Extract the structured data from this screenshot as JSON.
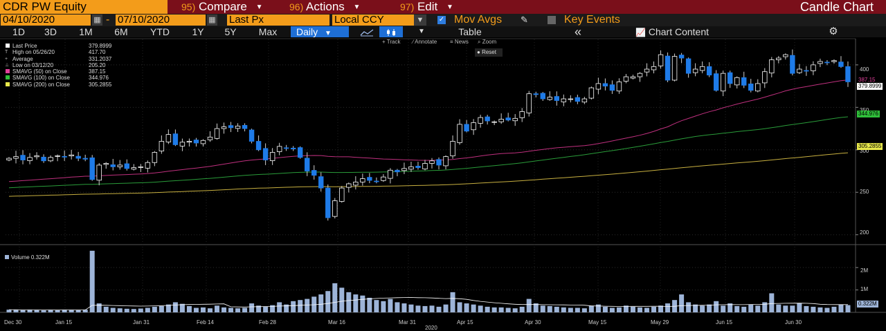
{
  "header": {
    "ticker": "CDR PW Equity",
    "menus": [
      {
        "num": "95)",
        "label": "Compare"
      },
      {
        "num": "96)",
        "label": "Actions"
      },
      {
        "num": "97)",
        "label": "Edit"
      }
    ],
    "title": "Candle Chart"
  },
  "controls": {
    "start_date": "04/10/2020",
    "date_sep": "-",
    "end_date": "07/10/2020",
    "field": "Last Px",
    "currency": "Local CCY",
    "mov_avgs_label": "Mov Avgs",
    "mov_avgs_checked": true,
    "key_events_label": "Key Events",
    "key_events_checked": false
  },
  "toolbar": {
    "periods": [
      "1D",
      "3D",
      "1M",
      "6M",
      "YTD",
      "1Y",
      "5Y",
      "Max"
    ],
    "frequency": "Daily",
    "table_label": "Table",
    "collapse_label": "«",
    "chart_content_label": "Chart Content"
  },
  "tools": {
    "track": "Track",
    "annotate": "Annotate",
    "news": "News",
    "zoom": "Zoom",
    "reset": "Reset"
  },
  "legend": [
    {
      "glyph": "■",
      "color": "#ffffff",
      "label": "Last Price",
      "value": "379.8999"
    },
    {
      "glyph": "T",
      "color": "",
      "label": "High on 05/26/20",
      "value": "417.70"
    },
    {
      "glyph": "+",
      "color": "",
      "label": "Average",
      "value": "331.2037"
    },
    {
      "glyph": "⊥",
      "color": "",
      "label": "Low on 03/12/20",
      "value": "205.20"
    },
    {
      "glyph": "",
      "color": "#e0409a",
      "label": "SMAVG (50)  on Close",
      "value": "387.15"
    },
    {
      "glyph": "",
      "color": "#2fbf3a",
      "label": "SMAVG (100)  on Close",
      "value": "344.976"
    },
    {
      "glyph": "",
      "color": "#e8e84a",
      "label": "SMAVG (200)  on Close",
      "value": "305.2855"
    }
  ],
  "volume_legend": {
    "label": "Volume",
    "value": "0.322M"
  },
  "price_tags": [
    {
      "value": "387.15",
      "color": "#e0409a",
      "text_color": "#e0409a"
    },
    {
      "value": "379.8999",
      "color": "#ffffff",
      "text_color": "#000000"
    },
    {
      "value": "344.976",
      "color": "#2fbf3a",
      "text_color": "#000000"
    },
    {
      "value": "305.2855",
      "color": "#e8e84a",
      "text_color": "#000000"
    },
    {
      "value": "0.322M",
      "color": "#9db4d8",
      "text_color": "#000000"
    }
  ],
  "chart_data": {
    "type": "candlestick",
    "price_axis": {
      "range": [
        190,
        430
      ],
      "ticks": [
        200,
        250,
        300,
        350,
        400
      ]
    },
    "volume_axis": {
      "range": [
        0,
        2900000
      ],
      "tick_values": [
        1000000,
        2000000
      ],
      "tick_labels": [
        "1M",
        "2M"
      ]
    },
    "x_labels": [
      "Dec 30",
      "Jan 15",
      "Jan 31",
      "Feb 14",
      "Feb 28",
      "Mar 16",
      "Mar 31",
      "Apr 15",
      "Apr 30",
      "May 15",
      "May 29",
      "Jun 15",
      "Jun 30"
    ],
    "year_label": "2020",
    "colors": {
      "up": "#ffffff",
      "down": "#1e7be8",
      "sma50": "#c0307f",
      "sma100": "#2a9d3a",
      "sma200": "#c8b040",
      "volume": "#9db4d8",
      "volume_avg": "#ffffff"
    },
    "closes": [
      290,
      292,
      288,
      291,
      293,
      287,
      291,
      293,
      292,
      294,
      290,
      289,
      265,
      282,
      284,
      280,
      282,
      278,
      279,
      280,
      285,
      297,
      310,
      318,
      306,
      309,
      310,
      308,
      311,
      315,
      325,
      327,
      326,
      328,
      325,
      310,
      300,
      288,
      297,
      304,
      302,
      301,
      291,
      275,
      270,
      255,
      220,
      240,
      255,
      260,
      262,
      266,
      264,
      263,
      268,
      276,
      274,
      278,
      280,
      279,
      284,
      287,
      282,
      292,
      310,
      330,
      322,
      332,
      338,
      334,
      333,
      336,
      335,
      337,
      345,
      366,
      365,
      360,
      362,
      358,
      360,
      360,
      357,
      360,
      373,
      378,
      375,
      370,
      380,
      386,
      386,
      390,
      395,
      398,
      412,
      382,
      410,
      408,
      390,
      395,
      398,
      388,
      370,
      390,
      378,
      385,
      376,
      370,
      378,
      392,
      406,
      408,
      412,
      390,
      395,
      393,
      400,
      404,
      403,
      405,
      398,
      380
    ],
    "volumes": [
      0.12,
      0.11,
      0.1,
      0.12,
      0.1,
      0.09,
      0.11,
      0.1,
      0.12,
      0.11,
      0.1,
      0.12,
      2.75,
      0.4,
      0.25,
      0.2,
      0.18,
      0.16,
      0.15,
      0.17,
      0.2,
      0.25,
      0.28,
      0.35,
      0.45,
      0.38,
      0.28,
      0.2,
      0.22,
      0.18,
      0.3,
      0.22,
      0.2,
      0.18,
      0.2,
      0.4,
      0.3,
      0.25,
      0.32,
      0.45,
      0.35,
      0.5,
      0.55,
      0.6,
      0.7,
      0.8,
      0.95,
      1.3,
      1.1,
      0.9,
      0.8,
      0.75,
      0.65,
      0.55,
      0.5,
      0.6,
      0.45,
      0.4,
      0.35,
      0.3,
      0.28,
      0.3,
      0.25,
      0.35,
      0.9,
      0.45,
      0.4,
      0.35,
      0.3,
      0.25,
      0.22,
      0.22,
      0.2,
      0.18,
      0.25,
      0.6,
      0.4,
      0.3,
      0.28,
      0.25,
      0.22,
      0.2,
      0.2,
      0.18,
      0.3,
      0.35,
      0.25,
      0.2,
      0.22,
      0.3,
      0.25,
      0.22,
      0.2,
      0.25,
      0.3,
      0.4,
      0.55,
      0.8,
      0.45,
      0.35,
      0.3,
      0.35,
      0.5,
      0.3,
      0.4,
      0.28,
      0.25,
      0.35,
      0.3,
      0.45,
      0.85,
      0.35,
      0.3,
      0.3,
      0.4,
      0.28,
      0.25,
      0.22,
      0.2,
      0.25,
      0.35,
      0.322
    ]
  }
}
